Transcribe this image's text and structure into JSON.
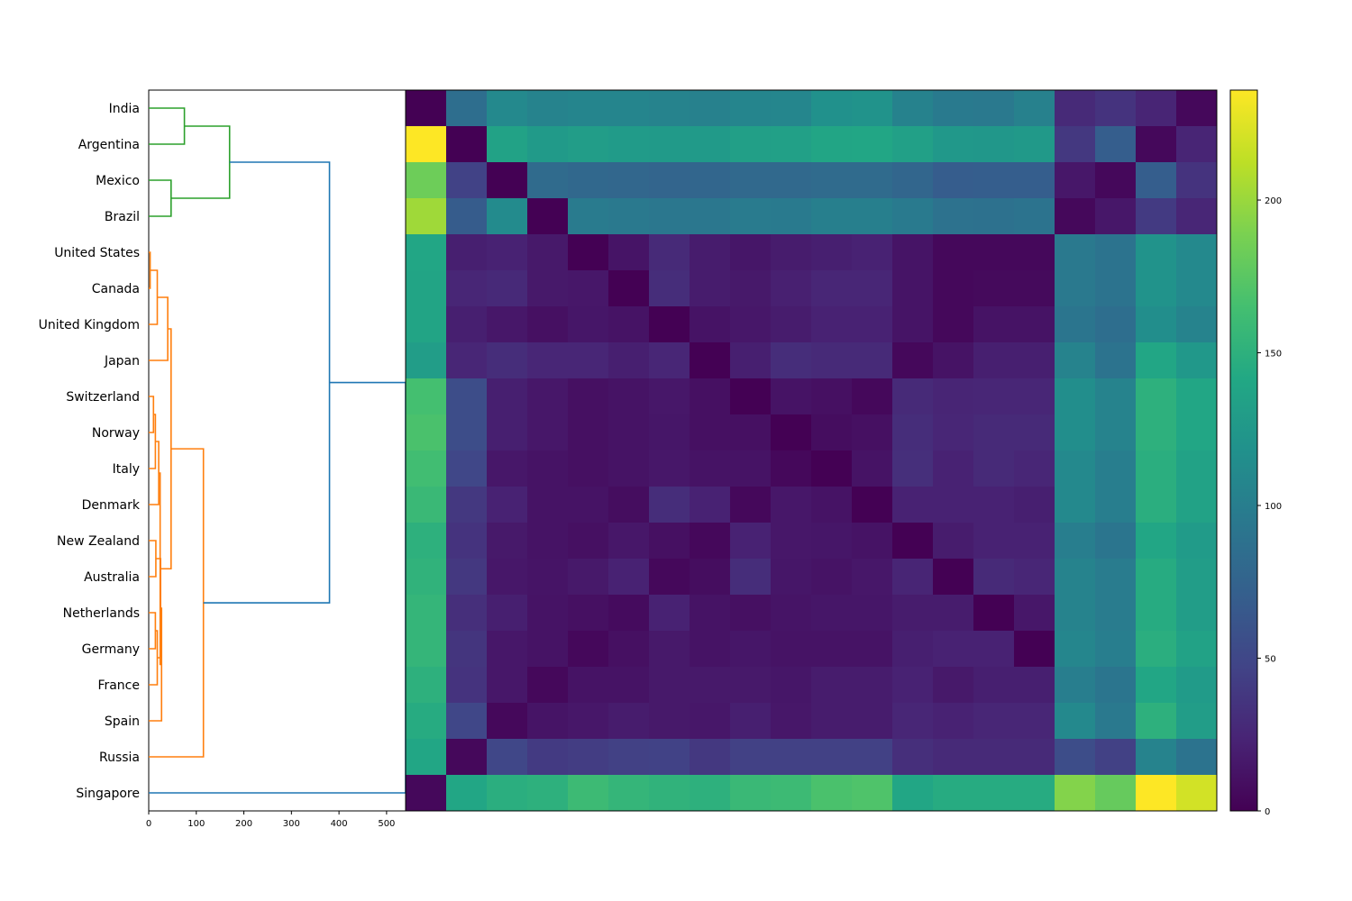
{
  "chart_data": {
    "type": "heatmap",
    "title": "",
    "row_labels": [
      "India",
      "Argentina",
      "Mexico",
      "Brazil",
      "United States",
      "Canada",
      "United Kingdom",
      "Japan",
      "Switzerland",
      "Norway",
      "Italy",
      "Denmark",
      "New Zealand",
      "Australia",
      "Netherlands",
      "Germany",
      "France",
      "Spain",
      "Russia",
      "Singapore"
    ],
    "column_labels_shown": false,
    "colorscale": "viridis",
    "colorbar": {
      "range": [
        0,
        236
      ],
      "ticks": [
        0,
        50,
        100,
        150,
        200
      ]
    },
    "matrix": [
      [
        0,
        85,
        110,
        105,
        107,
        107,
        105,
        103,
        107,
        108,
        118,
        120,
        104,
        96,
        95,
        103,
        28,
        35,
        24,
        5
      ],
      [
        236,
        0,
        135,
        127,
        130,
        128,
        127,
        127,
        132,
        133,
        139,
        140,
        133,
        125,
        124,
        126,
        38,
        70,
        5,
        24
      ],
      [
        183,
        46,
        0,
        82,
        79,
        78,
        76,
        77,
        80,
        80,
        82,
        82,
        77,
        69,
        70,
        70,
        15,
        5,
        70,
        35
      ],
      [
        202,
        68,
        112,
        0,
        97,
        95,
        93,
        93,
        97,
        96,
        101,
        101,
        96,
        89,
        88,
        90,
        5,
        15,
        40,
        25
      ],
      [
        140,
        20,
        22,
        16,
        0,
        13,
        28,
        18,
        14,
        18,
        20,
        22,
        13,
        5,
        5,
        5,
        95,
        90,
        120,
        110
      ],
      [
        138,
        25,
        27,
        16,
        15,
        0,
        30,
        18,
        16,
        21,
        25,
        25,
        13,
        5,
        6,
        6,
        95,
        90,
        120,
        110
      ],
      [
        138,
        20,
        15,
        10,
        14,
        12,
        0,
        12,
        15,
        18,
        22,
        22,
        13,
        5,
        12,
        12,
        92,
        85,
        115,
        105
      ],
      [
        130,
        25,
        30,
        25,
        25,
        20,
        25,
        0,
        20,
        30,
        28,
        28,
        5,
        12,
        20,
        20,
        105,
        90,
        140,
        125
      ],
      [
        165,
        55,
        20,
        15,
        10,
        12,
        15,
        10,
        0,
        12,
        10,
        5,
        28,
        24,
        25,
        25,
        115,
        105,
        150,
        140
      ],
      [
        168,
        55,
        20,
        15,
        10,
        12,
        14,
        10,
        10,
        0,
        8,
        10,
        30,
        25,
        28,
        28,
        115,
        105,
        150,
        140
      ],
      [
        163,
        50,
        15,
        12,
        10,
        12,
        15,
        12,
        12,
        5,
        0,
        12,
        32,
        22,
        28,
        25,
        110,
        100,
        148,
        135
      ],
      [
        158,
        38,
        22,
        12,
        12,
        8,
        30,
        22,
        5,
        15,
        12,
        0,
        22,
        22,
        22,
        20,
        110,
        100,
        148,
        135
      ],
      [
        150,
        35,
        16,
        12,
        10,
        15,
        10,
        5,
        22,
        15,
        14,
        12,
        0,
        18,
        22,
        22,
        100,
        92,
        140,
        128
      ],
      [
        152,
        38,
        15,
        13,
        16,
        22,
        5,
        8,
        30,
        14,
        12,
        15,
        24,
        0,
        28,
        25,
        105,
        98,
        145,
        130
      ],
      [
        155,
        32,
        20,
        12,
        10,
        7,
        22,
        12,
        10,
        13,
        14,
        14,
        18,
        18,
        0,
        15,
        105,
        98,
        145,
        130
      ],
      [
        155,
        36,
        15,
        12,
        5,
        10,
        16,
        12,
        14,
        12,
        12,
        12,
        20,
        22,
        22,
        0,
        108,
        100,
        148,
        135
      ],
      [
        150,
        35,
        15,
        5,
        12,
        12,
        16,
        16,
        16,
        14,
        18,
        18,
        22,
        16,
        20,
        20,
        100,
        92,
        140,
        128
      ],
      [
        145,
        50,
        5,
        13,
        15,
        18,
        16,
        15,
        20,
        15,
        18,
        18,
        25,
        22,
        25,
        25,
        110,
        95,
        150,
        130
      ],
      [
        140,
        5,
        50,
        40,
        42,
        45,
        46,
        38,
        45,
        45,
        45,
        45,
        32,
        28,
        28,
        28,
        55,
        45,
        105,
        90
      ],
      [
        5,
        140,
        148,
        150,
        160,
        155,
        152,
        150,
        158,
        160,
        168,
        170,
        140,
        145,
        145,
        145,
        192,
        180,
        236,
        220
      ]
    ],
    "dendrogram": {
      "orientation": "left",
      "x_axis_ticks": [
        0,
        100,
        200,
        300,
        400,
        500
      ],
      "x_range": [
        0,
        540
      ],
      "colors": {
        "cluster_small": "#2ca02c",
        "cluster_large": "#ff7f0e",
        "top_level": "#1f77b4"
      },
      "links": [
        {
          "a": 0,
          "b": 1,
          "h": 75,
          "color": "#2ca02c"
        },
        {
          "a": 2,
          "b": 3,
          "h": 47,
          "color": "#2ca02c"
        },
        {
          "a": "c0",
          "b": "c1",
          "h": 170,
          "color": "#2ca02c"
        },
        {
          "a": 4,
          "b": 5,
          "h": 3,
          "color": "#ff7f0e"
        },
        {
          "a": "c3",
          "b": 6,
          "h": 18,
          "color": "#ff7f0e"
        },
        {
          "a": "c4",
          "b": 7,
          "h": 40,
          "color": "#ff7f0e"
        },
        {
          "a": 8,
          "b": 9,
          "h": 10,
          "color": "#ff7f0e"
        },
        {
          "a": "c6",
          "b": 10,
          "h": 14,
          "color": "#ff7f0e"
        },
        {
          "a": "c7",
          "b": 11,
          "h": 21,
          "color": "#ff7f0e"
        },
        {
          "a": 12,
          "b": 13,
          "h": 15,
          "color": "#ff7f0e"
        },
        {
          "a": 14,
          "b": 15,
          "h": 14,
          "color": "#ff7f0e"
        },
        {
          "a": "c10",
          "b": 16,
          "h": 18,
          "color": "#ff7f0e"
        },
        {
          "a": "c9",
          "b": "c11",
          "h": 25,
          "color": "#ff7f0e"
        },
        {
          "a": "c12",
          "b": 17,
          "h": 27,
          "color": "#ff7f0e"
        },
        {
          "a": "c8",
          "b": "c13",
          "h": 24,
          "color": "#ff7f0e"
        },
        {
          "a": "c5",
          "b": "c14",
          "h": 47,
          "color": "#ff7f0e"
        },
        {
          "a": "c15",
          "b": 18,
          "h": 115,
          "color": "#ff7f0e"
        },
        {
          "a": "c2",
          "b": "c16",
          "h": 380,
          "color": "#1f77b4"
        },
        {
          "a": "c17",
          "b": 19,
          "h": 540,
          "color": "#1f77b4"
        }
      ]
    }
  }
}
